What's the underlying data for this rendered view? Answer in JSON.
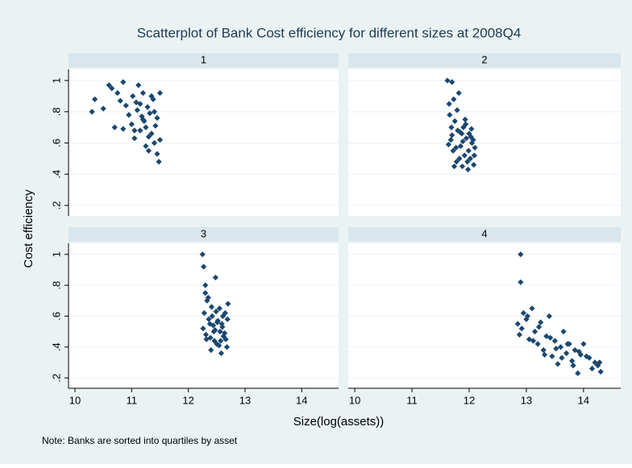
{
  "chart_data": {
    "type": "scatter",
    "title": "Scatterplot of Bank Cost efficiency for different sizes at 2008Q4",
    "xlabel": "Size(log(assets))",
    "ylabel": "Cost efficiency",
    "note": "Note: Banks are sorted into quartiles by asset",
    "color": "#1a476f",
    "grid": true,
    "xlim": [
      9.886,
      14.65
    ],
    "ylim": [
      0.133,
      1.072
    ],
    "xticks": [
      10,
      11,
      12,
      13,
      14
    ],
    "yticks": [
      {
        "value": 0.2,
        "label": ".2"
      },
      {
        "value": 0.4,
        "label": ".4"
      },
      {
        "value": 0.6,
        "label": ".6"
      },
      {
        "value": 0.8,
        "label": ".8"
      },
      1
    ],
    "panels": [
      {
        "label": "1",
        "x": [
          10.3,
          10.35,
          10.5,
          10.6,
          10.65,
          10.7,
          10.75,
          10.8,
          10.85,
          10.9,
          10.95,
          11.0,
          11.02,
          11.05,
          11.08,
          11.1,
          11.12,
          11.15,
          11.18,
          11.2,
          11.22,
          11.25,
          11.28,
          11.3,
          11.32,
          11.35,
          11.38,
          11.4,
          11.42,
          11.45,
          11.48,
          11.5,
          11.15,
          11.25,
          11.35,
          11.45,
          11.05,
          11.3,
          11.4,
          11.5,
          10.85,
          11.2
        ],
        "y": [
          0.8,
          0.88,
          0.82,
          0.97,
          0.95,
          0.7,
          0.92,
          0.87,
          0.99,
          0.84,
          0.78,
          0.72,
          0.9,
          0.63,
          0.86,
          0.81,
          0.97,
          0.68,
          0.77,
          0.92,
          0.74,
          0.58,
          0.83,
          0.55,
          0.79,
          0.66,
          0.88,
          0.6,
          0.71,
          0.53,
          0.48,
          0.62,
          0.85,
          0.7,
          0.9,
          0.76,
          0.68,
          0.64,
          0.8,
          0.92,
          0.69,
          0.75
        ]
      },
      {
        "label": "2",
        "x": [
          11.62,
          11.65,
          11.68,
          11.7,
          11.72,
          11.75,
          11.78,
          11.8,
          11.82,
          11.85,
          11.88,
          11.9,
          11.92,
          11.95,
          11.98,
          12.0,
          12.02,
          12.05,
          12.08,
          12.1,
          11.66,
          11.7,
          11.74,
          11.79,
          11.84,
          11.89,
          11.94,
          11.99,
          12.04,
          12.09,
          11.64,
          11.73,
          11.83,
          11.93,
          12.03,
          11.69,
          11.77,
          11.87,
          11.97,
          12.07
        ],
        "y": [
          1.0,
          0.85,
          0.62,
          0.99,
          0.55,
          0.74,
          0.48,
          0.68,
          0.92,
          0.58,
          0.45,
          0.7,
          0.52,
          0.63,
          0.43,
          0.66,
          0.5,
          0.6,
          0.46,
          0.57,
          0.78,
          0.65,
          0.45,
          0.81,
          0.67,
          0.61,
          0.72,
          0.55,
          0.69,
          0.52,
          0.59,
          0.88,
          0.5,
          0.75,
          0.64,
          0.7,
          0.57,
          0.66,
          0.48,
          0.62
        ]
      },
      {
        "label": "3",
        "x": [
          12.25,
          12.28,
          12.3,
          12.32,
          12.35,
          12.38,
          12.4,
          12.42,
          12.45,
          12.48,
          12.5,
          12.52,
          12.55,
          12.58,
          12.6,
          12.62,
          12.65,
          12.68,
          12.7,
          12.27,
          12.31,
          12.36,
          12.41,
          12.46,
          12.51,
          12.56,
          12.61,
          12.66,
          12.26,
          12.33,
          12.39,
          12.44,
          12.49,
          12.54,
          12.59,
          12.64,
          12.69,
          12.3,
          12.47,
          12.57
        ],
        "y": [
          1.0,
          0.62,
          0.8,
          0.45,
          0.72,
          0.55,
          0.38,
          0.6,
          0.5,
          0.85,
          0.42,
          0.57,
          0.65,
          0.36,
          0.53,
          0.47,
          0.62,
          0.4,
          0.68,
          0.92,
          0.48,
          0.58,
          0.66,
          0.44,
          0.56,
          0.5,
          0.6,
          0.45,
          0.52,
          0.7,
          0.46,
          0.54,
          0.63,
          0.41,
          0.55,
          0.49,
          0.58,
          0.75,
          0.51,
          0.44
        ]
      },
      {
        "label": "4",
        "x": [
          12.9,
          12.9,
          12.85,
          12.88,
          12.95,
          13.0,
          13.05,
          13.1,
          13.15,
          13.2,
          13.25,
          13.3,
          13.35,
          13.4,
          13.45,
          13.5,
          13.55,
          13.6,
          13.65,
          13.7,
          13.75,
          13.8,
          13.85,
          13.9,
          13.95,
          14.0,
          14.05,
          14.1,
          14.15,
          14.2,
          14.25,
          14.3,
          12.92,
          13.02,
          13.12,
          13.22,
          13.32,
          13.42,
          13.52,
          13.62,
          13.72,
          13.82,
          13.92,
          14.28
        ],
        "y": [
          1.0,
          0.82,
          0.55,
          0.48,
          0.62,
          0.58,
          0.45,
          0.65,
          0.5,
          0.42,
          0.56,
          0.38,
          0.47,
          0.6,
          0.34,
          0.44,
          0.29,
          0.4,
          0.5,
          0.36,
          0.42,
          0.31,
          0.38,
          0.23,
          0.35,
          0.42,
          0.34,
          0.33,
          0.26,
          0.3,
          0.28,
          0.24,
          0.52,
          0.6,
          0.44,
          0.53,
          0.35,
          0.46,
          0.39,
          0.33,
          0.42,
          0.28,
          0.37,
          0.3
        ]
      }
    ]
  }
}
